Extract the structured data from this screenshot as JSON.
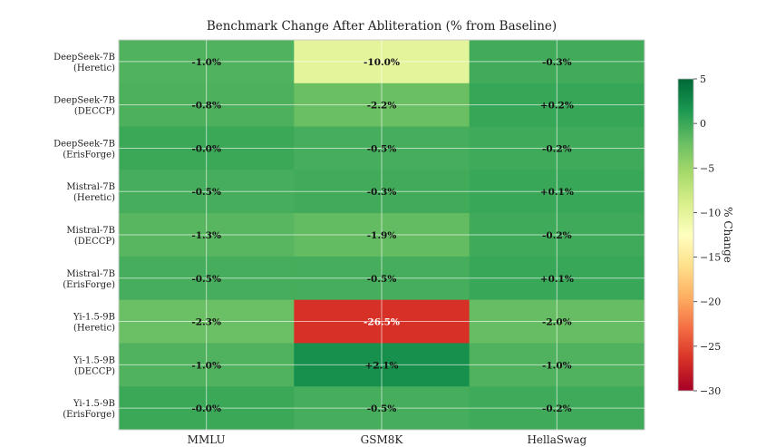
{
  "chart_data": {
    "type": "heatmap",
    "title": "Benchmark Change After Abliteration (% from Baseline)",
    "columns": [
      "MMLU",
      "GSM8K",
      "HellaSwag"
    ],
    "rows": [
      [
        "DeepSeek-7B",
        "(Heretic)"
      ],
      [
        "DeepSeek-7B",
        "(DECCP)"
      ],
      [
        "DeepSeek-7B",
        "(ErisForge)"
      ],
      [
        "Mistral-7B",
        "(Heretic)"
      ],
      [
        "Mistral-7B",
        "(DECCP)"
      ],
      [
        "Mistral-7B",
        "(ErisForge)"
      ],
      [
        "Yi-1.5-9B",
        "(Heretic)"
      ],
      [
        "Yi-1.5-9B",
        "(DECCP)"
      ],
      [
        "Yi-1.5-9B",
        "(ErisForge)"
      ]
    ],
    "values": [
      [
        -1.0,
        -10.0,
        -0.3
      ],
      [
        -0.8,
        -2.2,
        0.2
      ],
      [
        -0.0,
        -0.5,
        -0.2
      ],
      [
        -0.5,
        -0.3,
        0.1
      ],
      [
        -1.3,
        -1.9,
        -0.2
      ],
      [
        -0.5,
        -0.5,
        0.1
      ],
      [
        -2.3,
        -26.5,
        -2.0
      ],
      [
        -1.0,
        2.1,
        -1.0
      ],
      [
        -0.0,
        -0.5,
        -0.2
      ]
    ],
    "labels": [
      [
        "-1.0%",
        "-10.0%",
        "-0.3%"
      ],
      [
        "-0.8%",
        "-2.2%",
        "+0.2%"
      ],
      [
        "-0.0%",
        "-0.5%",
        "-0.2%"
      ],
      [
        "-0.5%",
        "-0.3%",
        "+0.1%"
      ],
      [
        "-1.3%",
        "-1.9%",
        "-0.2%"
      ],
      [
        "-0.5%",
        "-0.5%",
        "+0.1%"
      ],
      [
        "-2.3%",
        "-26.5%",
        "-2.0%"
      ],
      [
        "-1.0%",
        "+2.1%",
        "-1.0%"
      ],
      [
        "-0.0%",
        "-0.5%",
        "-0.2%"
      ]
    ],
    "colormap": "RdYlGn",
    "clim": [
      -30,
      5
    ],
    "colorbar": {
      "label": "% Change",
      "ticks": [
        5,
        0,
        -5,
        -10,
        -15,
        -20,
        -25,
        -30
      ],
      "tick_labels": [
        "5",
        "0",
        "−5",
        "−10",
        "−15",
        "−20",
        "−25",
        "−30"
      ]
    },
    "grid": true
  }
}
